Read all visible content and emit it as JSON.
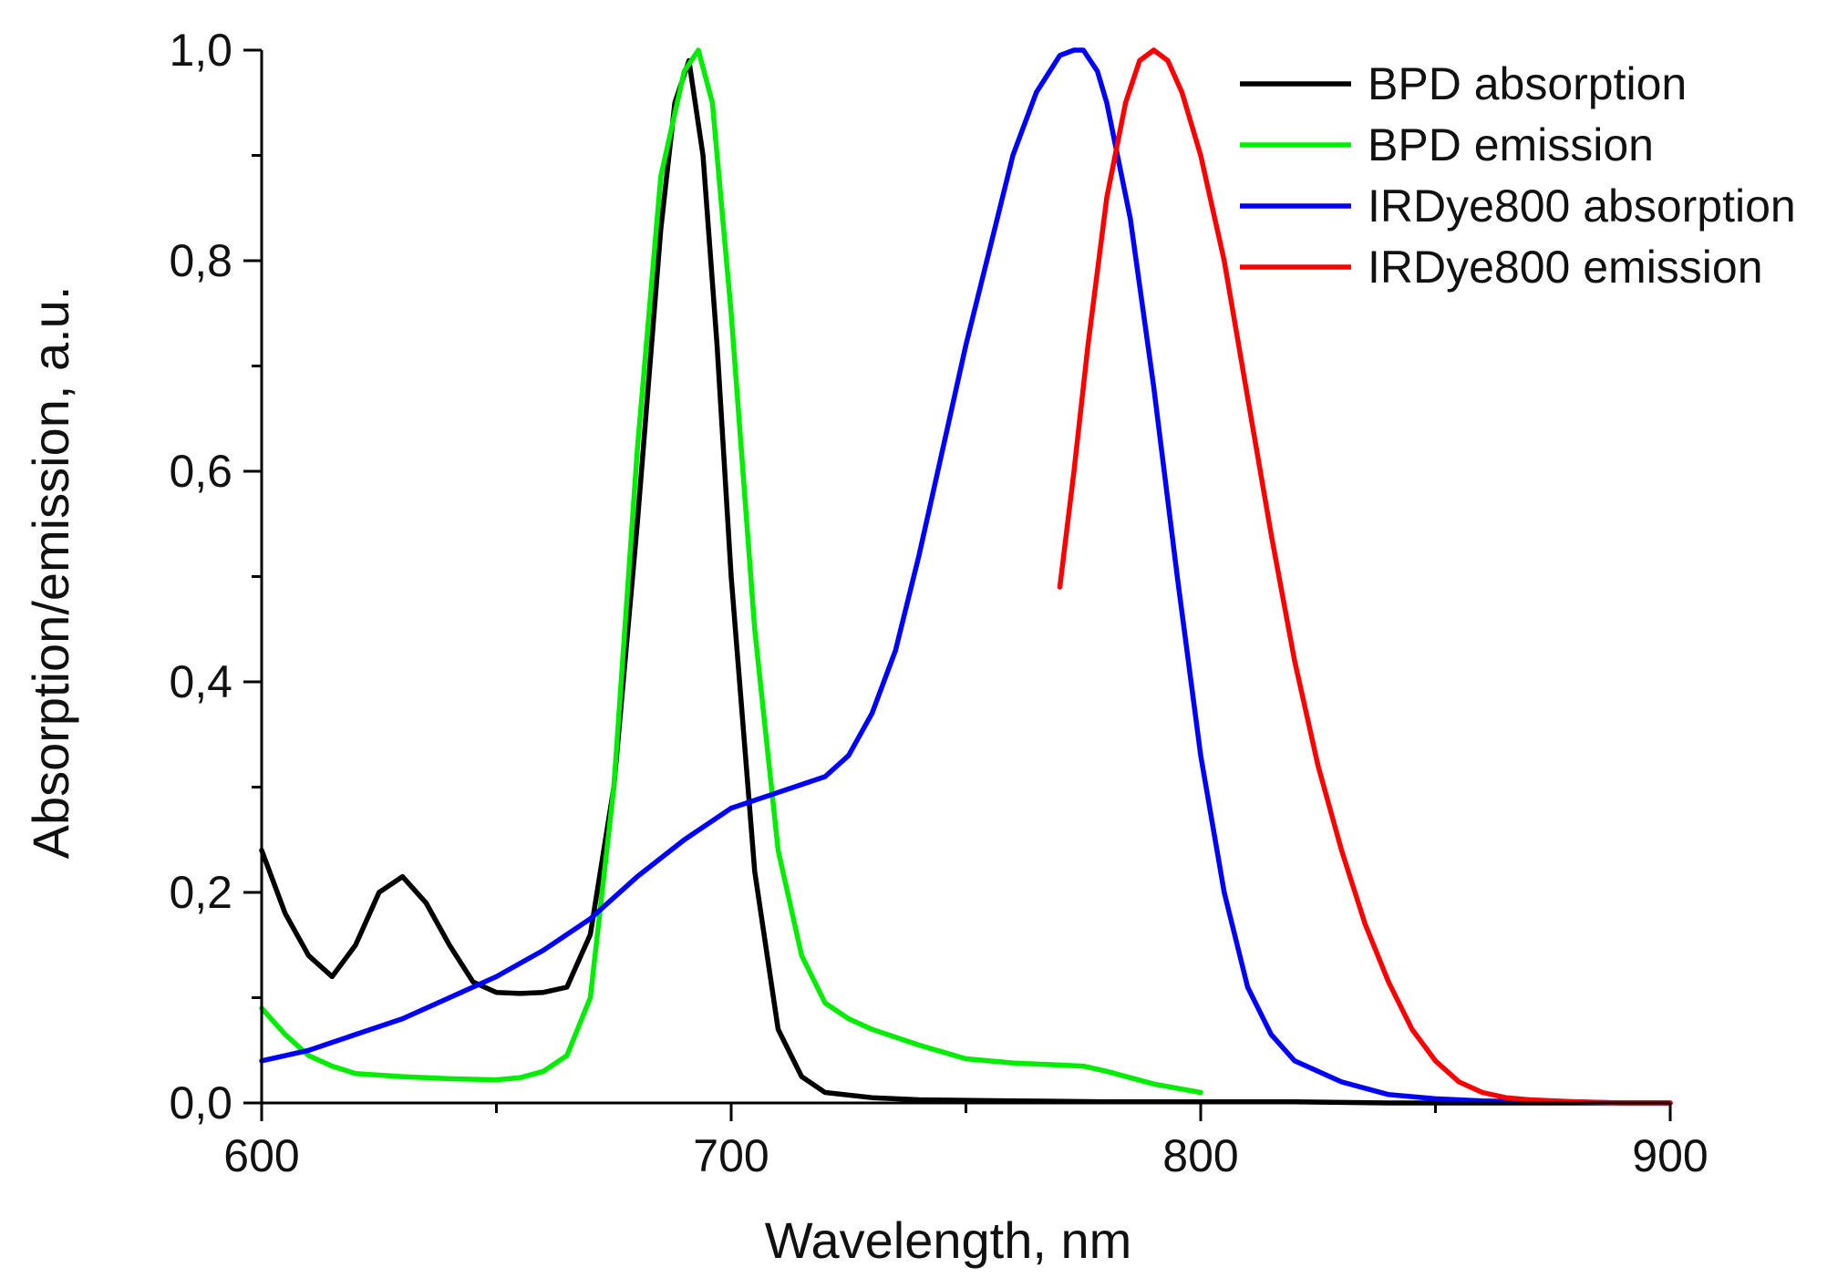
{
  "chart_data": {
    "type": "line",
    "title": "",
    "xlabel": "Wavelength, nm",
    "ylabel": "Absorption/emission, a.u.",
    "xlim": [
      600,
      900
    ],
    "ylim": [
      0,
      1
    ],
    "grid": false,
    "legend_position": "top-right",
    "x_ticks": [
      600,
      700,
      800,
      900
    ],
    "x_tick_labels": [
      "600",
      "700",
      "800",
      "900"
    ],
    "y_ticks": [
      0,
      0.2,
      0.4,
      0.6,
      0.8,
      1.0
    ],
    "y_tick_labels": [
      "0,0",
      "0,2",
      "0,4",
      "0,6",
      "0,8",
      "1,0"
    ],
    "series": [
      {
        "name": "BPD absorption",
        "color": "#000000",
        "x": [
          600,
          605,
          610,
          615,
          620,
          625,
          630,
          635,
          640,
          645,
          650,
          655,
          660,
          665,
          670,
          675,
          680,
          685,
          688,
          691,
          694,
          697,
          700,
          705,
          710,
          715,
          720,
          730,
          740,
          760,
          780,
          800,
          820,
          840,
          860,
          880,
          900
        ],
        "values": [
          0.24,
          0.18,
          0.14,
          0.12,
          0.15,
          0.2,
          0.215,
          0.19,
          0.15,
          0.115,
          0.105,
          0.104,
          0.105,
          0.11,
          0.16,
          0.3,
          0.55,
          0.83,
          0.95,
          0.99,
          0.9,
          0.72,
          0.5,
          0.22,
          0.07,
          0.025,
          0.01,
          0.005,
          0.003,
          0.002,
          0.001,
          0.001,
          0.001,
          0.0,
          0.0,
          0.0,
          0.0
        ]
      },
      {
        "name": "BPD emission",
        "color": "#00ee00",
        "x": [
          600,
          605,
          610,
          615,
          620,
          630,
          640,
          650,
          655,
          660,
          665,
          670,
          675,
          680,
          685,
          690,
          693,
          696,
          700,
          705,
          710,
          715,
          720,
          725,
          730,
          740,
          750,
          760,
          770,
          775,
          780,
          790,
          800
        ],
        "values": [
          0.09,
          0.065,
          0.045,
          0.035,
          0.028,
          0.025,
          0.023,
          0.022,
          0.024,
          0.03,
          0.045,
          0.1,
          0.3,
          0.62,
          0.88,
          0.98,
          1.0,
          0.95,
          0.75,
          0.45,
          0.24,
          0.14,
          0.095,
          0.08,
          0.07,
          0.055,
          0.042,
          0.038,
          0.036,
          0.035,
          0.03,
          0.018,
          0.01
        ]
      },
      {
        "name": "IRDye800 absorption",
        "color": "#0000ff",
        "x": [
          600,
          610,
          620,
          630,
          640,
          650,
          660,
          670,
          680,
          690,
          700,
          710,
          720,
          725,
          730,
          735,
          740,
          745,
          750,
          755,
          760,
          765,
          770,
          773,
          775,
          778,
          780,
          785,
          790,
          795,
          800,
          805,
          810,
          815,
          820,
          830,
          840,
          850,
          860,
          870,
          880,
          890,
          900
        ],
        "values": [
          0.04,
          0.05,
          0.065,
          0.08,
          0.1,
          0.12,
          0.145,
          0.175,
          0.215,
          0.25,
          0.28,
          0.295,
          0.31,
          0.33,
          0.37,
          0.43,
          0.52,
          0.62,
          0.72,
          0.81,
          0.9,
          0.96,
          0.995,
          1.0,
          1.0,
          0.98,
          0.95,
          0.84,
          0.68,
          0.5,
          0.33,
          0.2,
          0.11,
          0.065,
          0.04,
          0.02,
          0.008,
          0.004,
          0.002,
          0.001,
          0.001,
          0.0,
          0.0
        ]
      },
      {
        "name": "IRDye800 emission",
        "color": "#ff0000",
        "x": [
          770,
          773,
          776,
          780,
          784,
          787,
          790,
          793,
          796,
          800,
          805,
          810,
          815,
          820,
          825,
          830,
          835,
          840,
          845,
          850,
          855,
          860,
          865,
          870,
          880,
          890,
          900
        ],
        "values": [
          0.49,
          0.6,
          0.72,
          0.86,
          0.95,
          0.99,
          1.0,
          0.99,
          0.96,
          0.9,
          0.8,
          0.67,
          0.54,
          0.42,
          0.32,
          0.24,
          0.17,
          0.115,
          0.07,
          0.04,
          0.02,
          0.01,
          0.005,
          0.003,
          0.001,
          0.0,
          0.0
        ]
      }
    ]
  }
}
